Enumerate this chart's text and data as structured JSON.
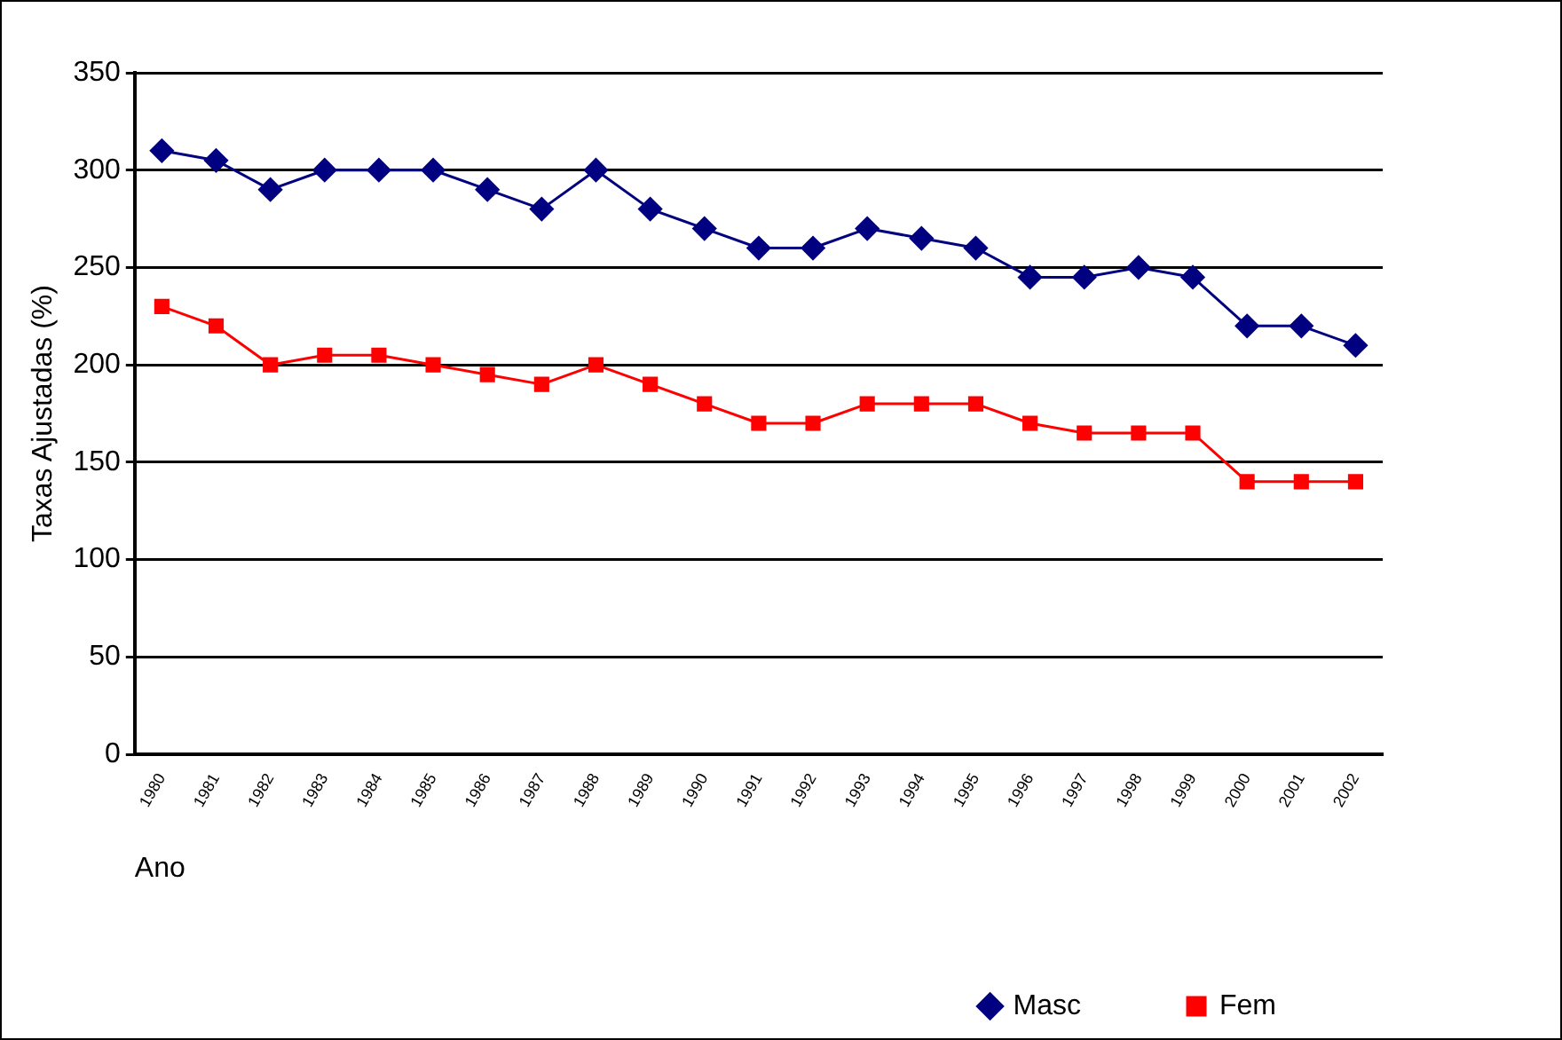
{
  "chart_data": {
    "type": "line",
    "xlabel": "Ano",
    "ylabel": "Taxas Ajustadas (%)",
    "categories": [
      "1980",
      "1981",
      "1982",
      "1983",
      "1984",
      "1985",
      "1986",
      "1987",
      "1988",
      "1989",
      "1990",
      "1991",
      "1992",
      "1993",
      "1994",
      "1995",
      "1996",
      "1997",
      "1998",
      "1999",
      "2000",
      "2001",
      "2002"
    ],
    "series": [
      {
        "name": "Masc",
        "color": "#000080",
        "marker": "diamond",
        "values": [
          310,
          305,
          290,
          300,
          300,
          300,
          290,
          280,
          300,
          280,
          270,
          260,
          260,
          270,
          265,
          260,
          245,
          245,
          250,
          245,
          220,
          220,
          210
        ]
      },
      {
        "name": "Fem",
        "color": "#ff0000",
        "marker": "square",
        "values": [
          230,
          220,
          200,
          205,
          205,
          200,
          195,
          190,
          200,
          190,
          180,
          170,
          170,
          180,
          180,
          180,
          170,
          165,
          165,
          165,
          140,
          140,
          140
        ]
      }
    ],
    "ylim": [
      0,
      350
    ],
    "yticks": [
      0,
      50,
      100,
      150,
      200,
      250,
      300,
      350
    ],
    "grid": "y",
    "legend": "bottom right",
    "line_style": "solid"
  }
}
